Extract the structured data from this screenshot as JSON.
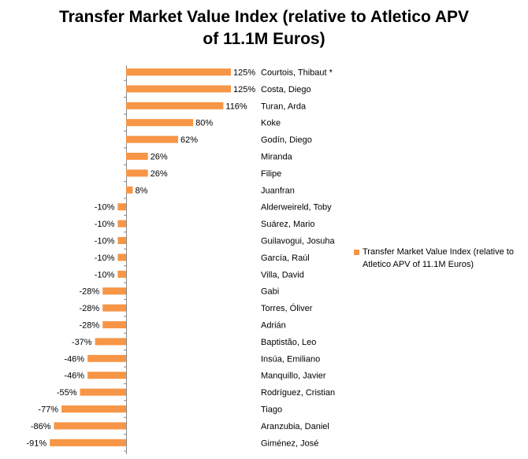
{
  "chart_data": {
    "type": "bar",
    "orientation": "horizontal",
    "title_lines": [
      "Transfer Market Value Index (relative to Atletico APV",
      "of 11.1M Euros)"
    ],
    "title": "Transfer Market Value Index (relative to Atletico APV of 11.1M Euros)",
    "xlabel": "",
    "ylabel": "",
    "grid": false,
    "legend_position": "right",
    "color": "#f79646",
    "categories": [
      "Courtois, Thibaut *",
      "Costa, Diego",
      "Turan, Arda",
      "Koke",
      "Godín, Diego",
      "Miranda",
      "Filipe",
      "Juanfran",
      "Alderweireld, Toby",
      "Suárez, Mario",
      "Guilavogui, Josuha",
      "García, Raúl",
      "Villa, David",
      "Gabi",
      "Torres, Óliver",
      "Adrián",
      "Baptistão, Leo",
      "Insúa, Emiliano",
      "Manquillo, Javier",
      "Rodríguez, Cristian",
      "Tiago",
      "Aranzubia, Daniel",
      "Giménez, José"
    ],
    "series": [
      {
        "name": "Transfer Market Value Index (relative to Atletico APV of 11.1M Euros)",
        "values": [
          125,
          125,
          116,
          80,
          62,
          26,
          26,
          8,
          -10,
          -10,
          -10,
          -10,
          -10,
          -28,
          -28,
          -28,
          -37,
          -46,
          -46,
          -55,
          -77,
          -86,
          -91
        ],
        "data_labels": [
          "125%",
          "125%",
          "116%",
          "80%",
          "62%",
          "26%",
          "26%",
          "8%",
          "-10%",
          "-10%",
          "-10%",
          "-10%",
          "-10%",
          "-28%",
          "-28%",
          "-28%",
          "-37%",
          "-46%",
          "-46%",
          "-55%",
          "-77%",
          "-86%",
          "-91%"
        ]
      }
    ]
  }
}
